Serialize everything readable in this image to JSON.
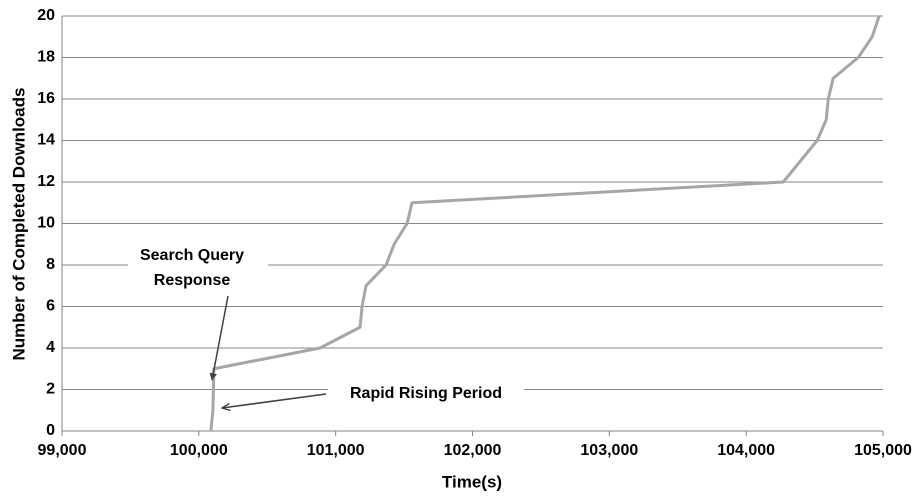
{
  "chart_data": {
    "type": "line",
    "x_label": "Time(s)",
    "y_label": "Number of Completed Downloads",
    "x": [
      100088,
      100103,
      100110,
      100886,
      101178,
      101193,
      101222,
      101368,
      101427,
      101522,
      101558,
      104271,
      104395,
      104519,
      104585,
      104600,
      104636,
      104819,
      104921,
      104972
    ],
    "series": [
      {
        "color": "#a6a6a6",
        "values": [
          0,
          1,
          3,
          4,
          5,
          6,
          7,
          8,
          9,
          10,
          11,
          12,
          13,
          14,
          15,
          16,
          17,
          18,
          19,
          20
        ]
      }
    ],
    "xlim": [
      99000,
      105000
    ],
    "xticks": [
      {
        "value": 99000,
        "label": "99,000"
      },
      {
        "value": 100000,
        "label": "100,000"
      },
      {
        "value": 101000,
        "label": "101,000"
      },
      {
        "value": 102000,
        "label": "102,000"
      },
      {
        "value": 103000,
        "label": "103,000"
      },
      {
        "value": 104000,
        "label": "104,000"
      },
      {
        "value": 105000,
        "label": "105,000"
      }
    ],
    "ylim": [
      0,
      20
    ],
    "yticks": [
      0,
      2,
      4,
      6,
      8,
      10,
      12,
      14,
      16,
      18,
      20
    ],
    "grid": true,
    "annotations": [
      {
        "text": [
          "Search Query",
          "Response"
        ]
      },
      {
        "text": "Rapid Rising Period"
      }
    ]
  }
}
